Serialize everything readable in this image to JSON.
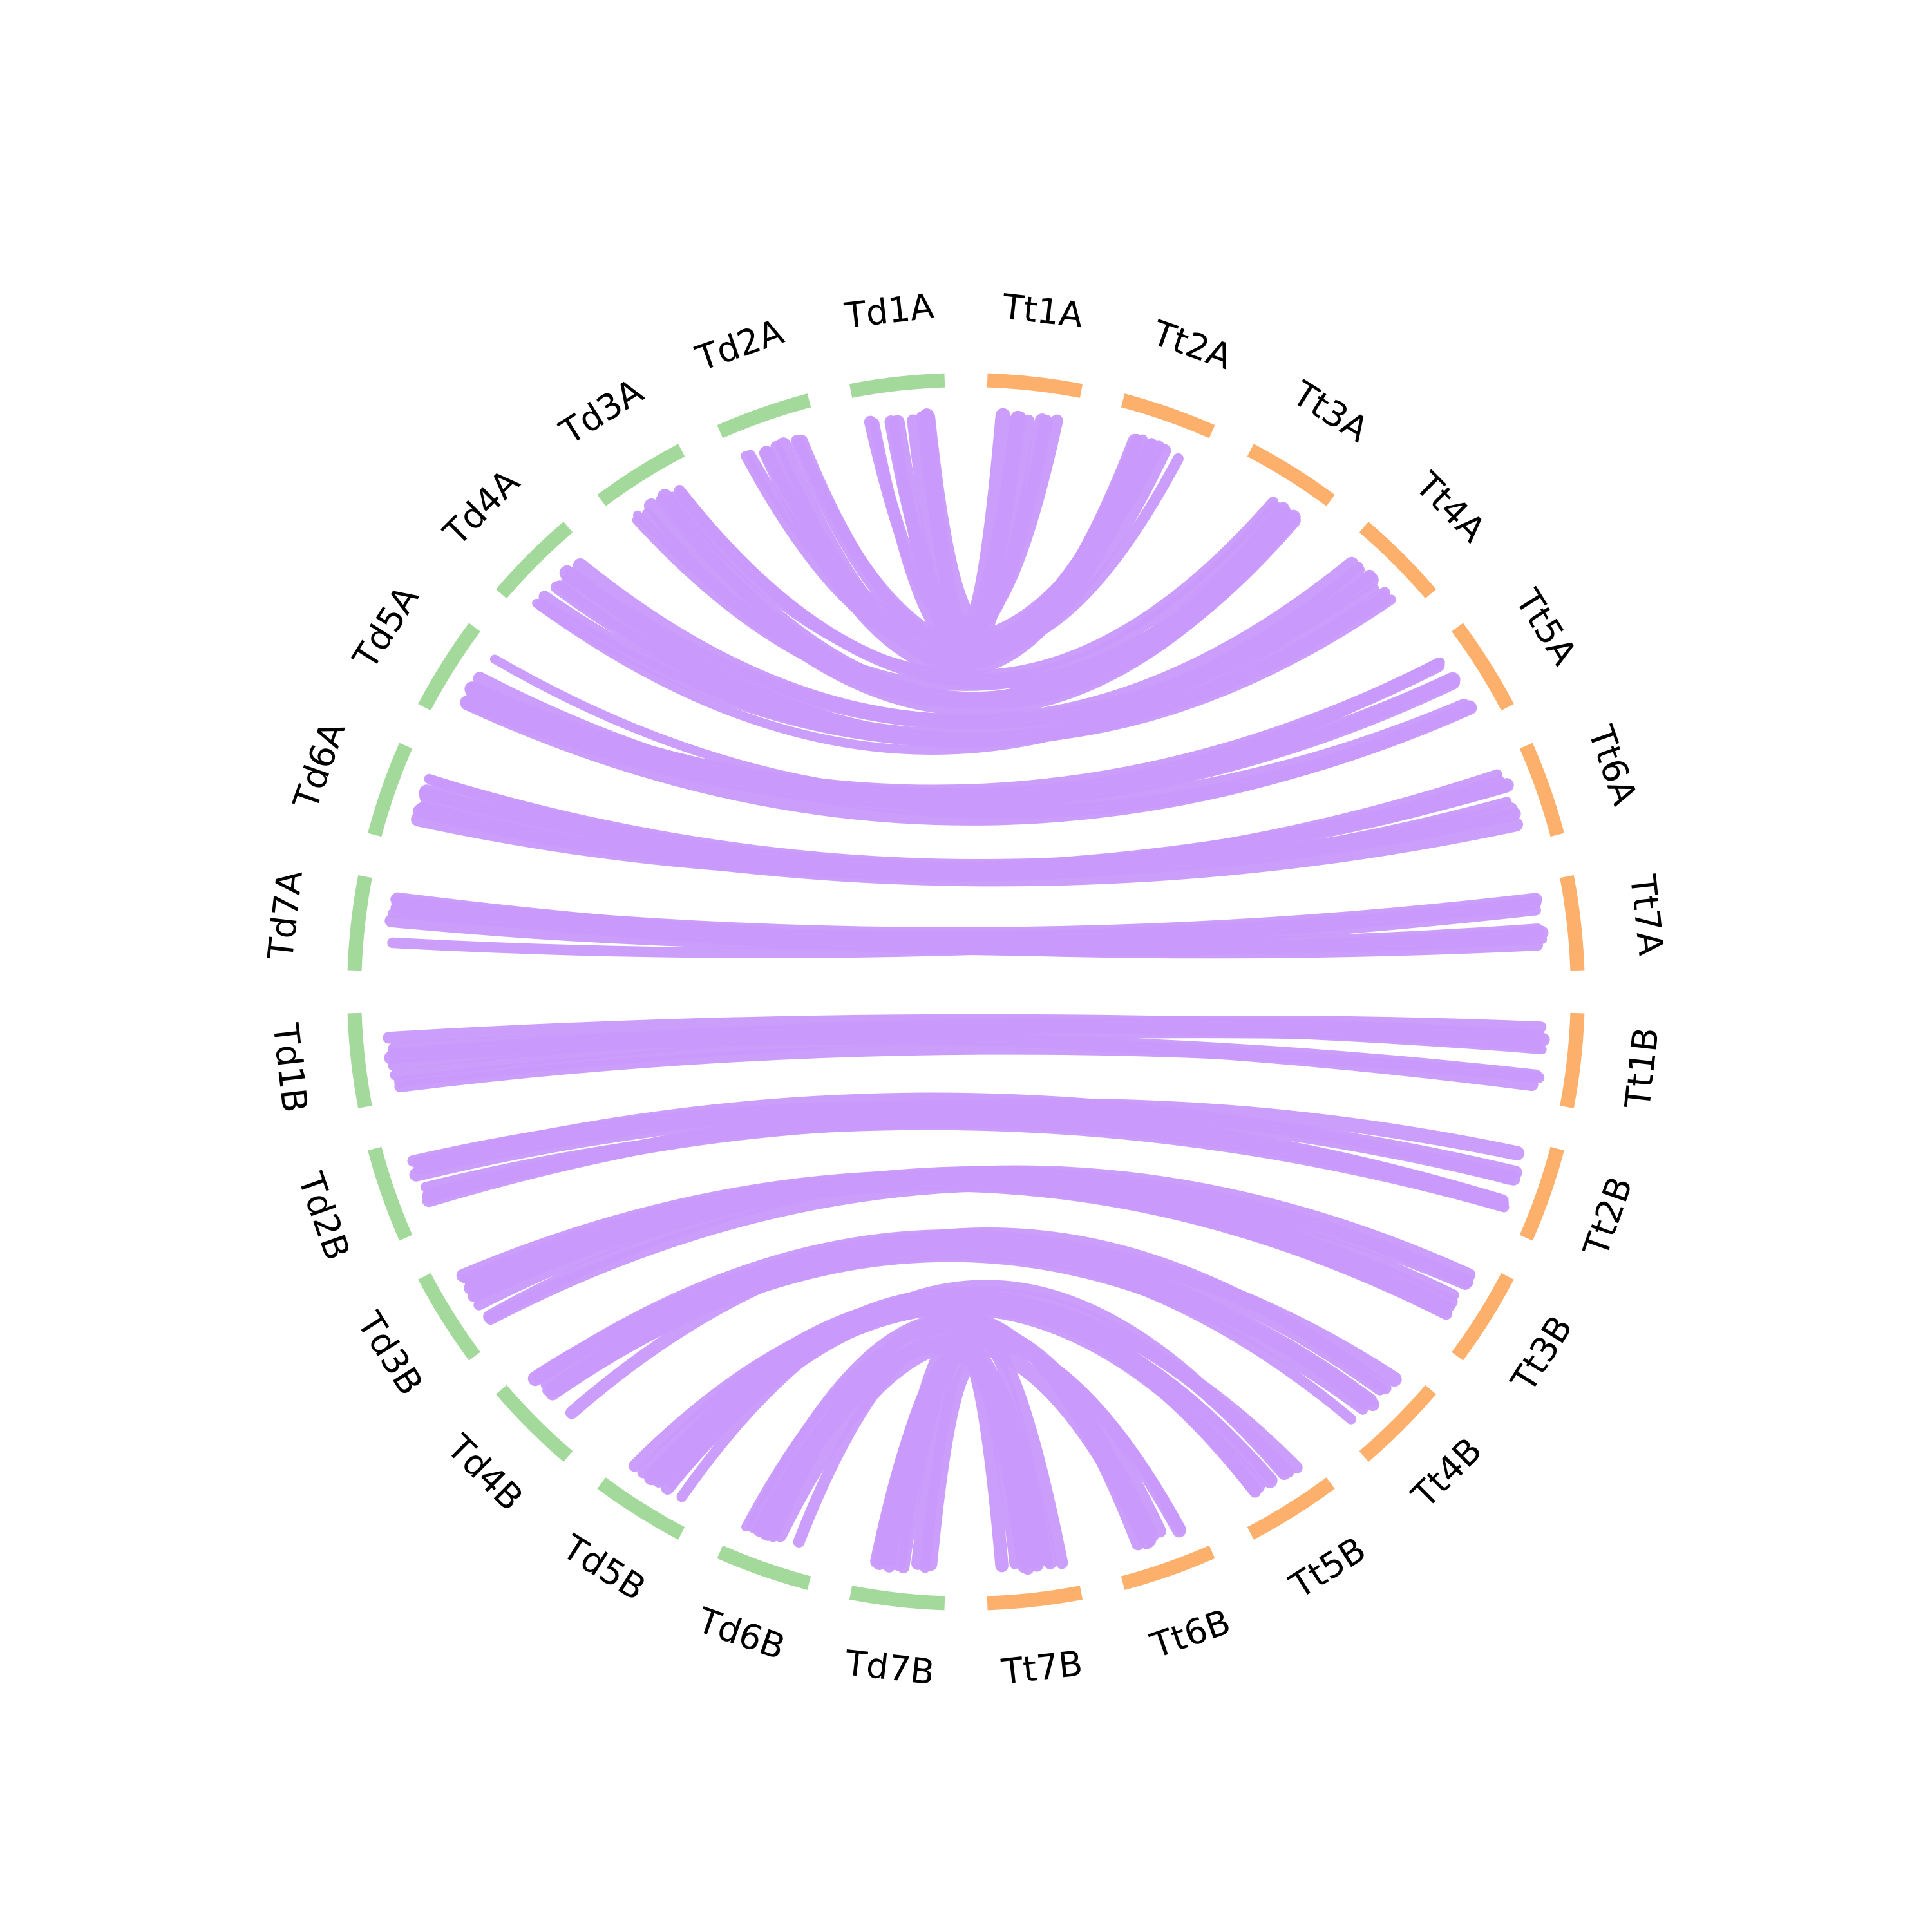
{
  "colors": {
    "genome_td": "#a3d99b",
    "genome_tt": "#fdb06c",
    "link": "#c999fc",
    "background": "#ffffff",
    "text": "#000000"
  },
  "chart_data": {
    "type": "chord",
    "genomes": [
      {
        "prefix": "Td",
        "color_key": "genome_td"
      },
      {
        "prefix": "Tt",
        "color_key": "genome_tt"
      }
    ],
    "segments": [
      {
        "id": "Td1A",
        "genome": "Td"
      },
      {
        "id": "Td2A",
        "genome": "Td"
      },
      {
        "id": "Td3A",
        "genome": "Td"
      },
      {
        "id": "Td4A",
        "genome": "Td"
      },
      {
        "id": "Td5A",
        "genome": "Td"
      },
      {
        "id": "Td6A",
        "genome": "Td"
      },
      {
        "id": "Td7A",
        "genome": "Td"
      },
      {
        "id": "Td1B",
        "genome": "Td"
      },
      {
        "id": "Td2B",
        "genome": "Td"
      },
      {
        "id": "Td3B",
        "genome": "Td"
      },
      {
        "id": "Td4B",
        "genome": "Td"
      },
      {
        "id": "Td5B",
        "genome": "Td"
      },
      {
        "id": "Td6B",
        "genome": "Td"
      },
      {
        "id": "Td7B",
        "genome": "Td"
      },
      {
        "id": "Tt7B",
        "genome": "Tt"
      },
      {
        "id": "Tt6B",
        "genome": "Tt"
      },
      {
        "id": "Tt5B",
        "genome": "Tt"
      },
      {
        "id": "Tt4B",
        "genome": "Tt"
      },
      {
        "id": "Tt3B",
        "genome": "Tt"
      },
      {
        "id": "Tt2B",
        "genome": "Tt"
      },
      {
        "id": "Tt1B",
        "genome": "Tt"
      },
      {
        "id": "Tt7A",
        "genome": "Tt"
      },
      {
        "id": "Tt6A",
        "genome": "Tt"
      },
      {
        "id": "Tt5A",
        "genome": "Tt"
      },
      {
        "id": "Tt4A",
        "genome": "Tt"
      },
      {
        "id": "Tt3A",
        "genome": "Tt"
      },
      {
        "id": "Tt2A",
        "genome": "Tt"
      },
      {
        "id": "Tt1A",
        "genome": "Tt"
      }
    ],
    "links": [
      {
        "from": "Td1A",
        "to": "Tt1A"
      },
      {
        "from": "Td2A",
        "to": "Tt2A"
      },
      {
        "from": "Td3A",
        "to": "Tt3A"
      },
      {
        "from": "Td4A",
        "to": "Tt4A"
      },
      {
        "from": "Td5A",
        "to": "Tt5A"
      },
      {
        "from": "Td6A",
        "to": "Tt6A"
      },
      {
        "from": "Td7A",
        "to": "Tt7A"
      },
      {
        "from": "Td1B",
        "to": "Tt1B"
      },
      {
        "from": "Td2B",
        "to": "Tt2B"
      },
      {
        "from": "Td3B",
        "to": "Tt3B"
      },
      {
        "from": "Td4B",
        "to": "Tt4B"
      },
      {
        "from": "Td5B",
        "to": "Tt5B"
      },
      {
        "from": "Td6B",
        "to": "Tt6B"
      },
      {
        "from": "Td7B",
        "to": "Tt7B"
      }
    ]
  }
}
